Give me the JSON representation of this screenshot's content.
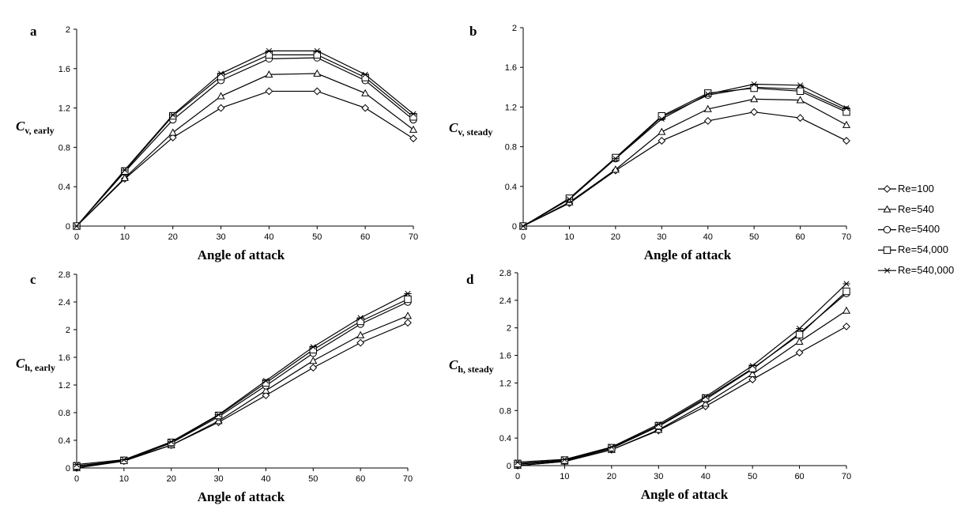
{
  "chart_data": [
    {
      "panel": "a",
      "type": "line",
      "xlabel": "Angle of attack",
      "ylabel_main": "C",
      "ylabel_sub": "v, early",
      "x": [
        0,
        10,
        20,
        30,
        40,
        50,
        60,
        70
      ],
      "xticks": [
        "0",
        "10",
        "20",
        "30",
        "40",
        "50",
        "60",
        "70"
      ],
      "ylim": [
        0,
        2
      ],
      "yticks": [
        0,
        0.4,
        0.8,
        1.2,
        1.6,
        2
      ],
      "ytick_labels": [
        "0",
        "0.4",
        "0.8",
        "1.2",
        "1.6",
        "2"
      ],
      "series": [
        {
          "name": "Re=100",
          "marker": "diamond",
          "values": [
            0,
            0.48,
            0.9,
            1.2,
            1.37,
            1.37,
            1.2,
            0.89
          ]
        },
        {
          "name": "Re=540",
          "marker": "triangle",
          "values": [
            0,
            0.49,
            0.95,
            1.32,
            1.54,
            1.55,
            1.35,
            0.98
          ]
        },
        {
          "name": "Re=5400",
          "marker": "circle",
          "values": [
            0,
            0.55,
            1.08,
            1.48,
            1.7,
            1.71,
            1.48,
            1.08
          ]
        },
        {
          "name": "Re=54,000",
          "marker": "square",
          "values": [
            0,
            0.56,
            1.12,
            1.52,
            1.74,
            1.74,
            1.51,
            1.11
          ]
        },
        {
          "name": "Re=540,000",
          "marker": "star",
          "values": [
            0,
            0.57,
            1.13,
            1.55,
            1.78,
            1.78,
            1.54,
            1.14
          ]
        }
      ]
    },
    {
      "panel": "b",
      "type": "line",
      "xlabel": "Angle of attack",
      "ylabel_main": "C",
      "ylabel_sub": "v, steady",
      "x": [
        0,
        10,
        20,
        30,
        40,
        50,
        60,
        70
      ],
      "xticks": [
        "0",
        "10",
        "20",
        "30",
        "40",
        "50",
        "60",
        "70"
      ],
      "ylim": [
        0,
        2
      ],
      "yticks": [
        0,
        0.4,
        0.8,
        1.2,
        1.6,
        2
      ],
      "ytick_labels": [
        "0",
        "0.4",
        "0.8",
        "1.2",
        "1.6",
        "2"
      ],
      "series": [
        {
          "name": "Re=100",
          "marker": "diamond",
          "values": [
            0,
            0.23,
            0.56,
            0.86,
            1.06,
            1.15,
            1.09,
            0.86
          ]
        },
        {
          "name": "Re=540",
          "marker": "triangle",
          "values": [
            0,
            0.24,
            0.57,
            0.95,
            1.18,
            1.28,
            1.27,
            1.02
          ]
        },
        {
          "name": "Re=5400",
          "marker": "circle",
          "values": [
            0,
            0.27,
            0.68,
            1.1,
            1.32,
            1.4,
            1.38,
            1.17
          ]
        },
        {
          "name": "Re=54,000",
          "marker": "square",
          "values": [
            0,
            0.28,
            0.69,
            1.11,
            1.34,
            1.39,
            1.36,
            1.15
          ]
        },
        {
          "name": "Re=540,000",
          "marker": "star",
          "values": [
            0,
            0.27,
            0.68,
            1.08,
            1.33,
            1.43,
            1.42,
            1.19
          ]
        }
      ]
    },
    {
      "panel": "c",
      "type": "line",
      "xlabel": "Angle of attack",
      "ylabel_main": "C",
      "ylabel_sub": "h, early",
      "x": [
        0,
        10,
        20,
        30,
        40,
        50,
        60,
        70
      ],
      "xticks": [
        "0",
        "10",
        "20",
        "30",
        "40",
        "50",
        "60",
        "70"
      ],
      "ylim": [
        0,
        2.8
      ],
      "yticks": [
        0,
        0.4,
        0.8,
        1.2,
        1.6,
        2,
        2.4,
        2.8
      ],
      "ytick_labels": [
        "0",
        "0.4",
        "0.8",
        "1.2",
        "1.6",
        "2",
        "2.4",
        "2.8"
      ],
      "series": [
        {
          "name": "Re=100",
          "marker": "diamond",
          "values": [
            0,
            0.1,
            0.33,
            0.66,
            1.05,
            1.45,
            1.81,
            2.1
          ]
        },
        {
          "name": "Re=540",
          "marker": "triangle",
          "values": [
            0,
            0.11,
            0.33,
            0.68,
            1.12,
            1.55,
            1.92,
            2.2
          ]
        },
        {
          "name": "Re=5400",
          "marker": "circle",
          "values": [
            0.02,
            0.11,
            0.36,
            0.74,
            1.19,
            1.66,
            2.08,
            2.4
          ]
        },
        {
          "name": "Re=54,000",
          "marker": "square",
          "values": [
            0.03,
            0.11,
            0.37,
            0.76,
            1.23,
            1.71,
            2.12,
            2.44
          ]
        },
        {
          "name": "Re=540,000",
          "marker": "star",
          "values": [
            0.05,
            0.12,
            0.38,
            0.77,
            1.26,
            1.75,
            2.17,
            2.52
          ]
        }
      ]
    },
    {
      "panel": "d",
      "type": "line",
      "xlabel": "Angle of attack",
      "ylabel_main": "C",
      "ylabel_sub": "h, steady",
      "x": [
        0,
        10,
        20,
        30,
        40,
        50,
        60,
        70
      ],
      "xticks": [
        "0",
        "10",
        "20",
        "30",
        "40",
        "50",
        "60",
        "70"
      ],
      "ylim": [
        0,
        2.8
      ],
      "yticks": [
        0,
        0.4,
        0.8,
        1.2,
        1.6,
        2,
        2.4,
        2.8
      ],
      "ytick_labels": [
        "0",
        "0.4",
        "0.8",
        "1.2",
        "1.6",
        "2",
        "2.4",
        "2.8"
      ],
      "series": [
        {
          "name": "Re=100",
          "marker": "diamond",
          "values": [
            0,
            0.06,
            0.23,
            0.51,
            0.86,
            1.25,
            1.64,
            2.02
          ]
        },
        {
          "name": "Re=540",
          "marker": "triangle",
          "values": [
            0,
            0.06,
            0.23,
            0.52,
            0.9,
            1.33,
            1.8,
            2.25
          ]
        },
        {
          "name": "Re=5400",
          "marker": "circle",
          "values": [
            0.02,
            0.07,
            0.25,
            0.57,
            0.96,
            1.4,
            1.92,
            2.5
          ]
        },
        {
          "name": "Re=54,000",
          "marker": "square",
          "values": [
            0.03,
            0.08,
            0.26,
            0.58,
            0.98,
            1.41,
            1.9,
            2.53
          ]
        },
        {
          "name": "Re=540,000",
          "marker": "star",
          "values": [
            0.05,
            0.09,
            0.27,
            0.6,
            1.0,
            1.45,
            1.99,
            2.64
          ]
        }
      ]
    }
  ],
  "legend": {
    "entries": [
      {
        "label": "Re=100",
        "marker": "diamond"
      },
      {
        "label": "Re=540",
        "marker": "triangle"
      },
      {
        "label": "Re=5400",
        "marker": "circle"
      },
      {
        "label": "Re=54,000",
        "marker": "square"
      },
      {
        "label": "Re=540,000",
        "marker": "star"
      }
    ]
  },
  "colors": {
    "line": "#000000",
    "marker_fill": "#ffffff",
    "background": "#ffffff"
  }
}
